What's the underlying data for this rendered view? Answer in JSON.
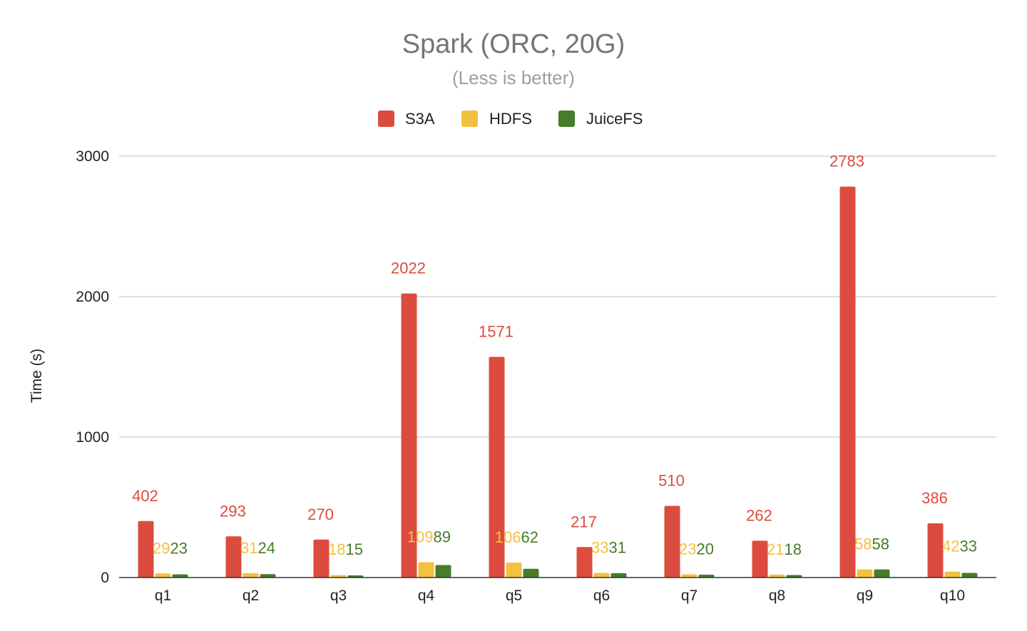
{
  "chart_data": {
    "type": "bar",
    "title": "Spark (ORC, 20G)",
    "subtitle": "(Less is better)",
    "xlabel": "",
    "ylabel": "Time (s)",
    "ylim": [
      0,
      3000
    ],
    "yticks": [
      0,
      1000,
      2000,
      3000
    ],
    "grid": true,
    "legend_position": "top",
    "categories": [
      "q1",
      "q2",
      "q3",
      "q4",
      "q5",
      "q6",
      "q7",
      "q8",
      "q9",
      "q10"
    ],
    "series": [
      {
        "name": "S3A",
        "color": "#db4c3f",
        "values": [
          402,
          293,
          270,
          2022,
          1571,
          217,
          510,
          262,
          2783,
          386
        ]
      },
      {
        "name": "HDFS",
        "color": "#f4c03f",
        "values": [
          29,
          31,
          18,
          109,
          106,
          33,
          23,
          21,
          58,
          42
        ]
      },
      {
        "name": "JuiceFS",
        "color": "#467c2a",
        "values": [
          23,
          24,
          15,
          89,
          62,
          31,
          20,
          18,
          58,
          33
        ]
      }
    ]
  }
}
